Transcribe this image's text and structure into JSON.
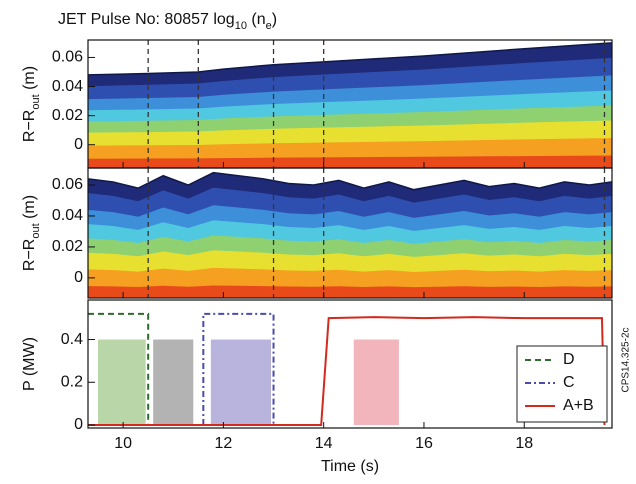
{
  "chart_data": [
    {
      "type": "contour",
      "title": [
        "JET Pulse No: 80857 log",
        "10",
        " (n",
        "e",
        ")"
      ],
      "ylabel": [
        "R−R",
        "out",
        " (m)"
      ],
      "xlim": [
        9.3,
        19.75
      ],
      "xticks": [
        10,
        12,
        14,
        16,
        18
      ],
      "ylim": [
        -0.016,
        0.072
      ],
      "yticks": [
        0,
        0.02,
        0.04,
        0.06
      ],
      "x": [
        9.3,
        10.5,
        11.5,
        12.0,
        13.0,
        14.0,
        16.0,
        18.0,
        19.75
      ],
      "values": [
        0.048,
        0.049,
        0.05,
        0.052,
        0.055,
        0.057,
        0.061,
        0.066,
        0.07
      ],
      "markers": [
        10.5,
        11.5,
        13,
        14,
        19.6
      ]
    },
    {
      "type": "contour",
      "ylabel": [
        "R−R",
        "out",
        " (m)"
      ],
      "xlim": [
        9.3,
        19.75
      ],
      "xticks": [
        10,
        12,
        14,
        16,
        18
      ],
      "ylim": [
        -0.013,
        0.071
      ],
      "yticks": [
        0,
        0.02,
        0.04,
        0.06
      ],
      "x": [
        9.3,
        9.8,
        10.3,
        10.8,
        11.3,
        11.8,
        12.3,
        12.8,
        13.3,
        13.8,
        14.3,
        14.8,
        15.3,
        15.8,
        16.3,
        16.8,
        17.3,
        17.8,
        18.3,
        18.8,
        19.3,
        19.75
      ],
      "values": [
        0.064,
        0.062,
        0.058,
        0.066,
        0.06,
        0.068,
        0.066,
        0.064,
        0.061,
        0.06,
        0.063,
        0.058,
        0.062,
        0.057,
        0.06,
        0.063,
        0.059,
        0.061,
        0.058,
        0.062,
        0.06,
        0.062
      ],
      "markers": [
        10.5,
        13,
        14,
        19.6
      ]
    },
    {
      "type": "line",
      "ylabel": [
        "P (MW)"
      ],
      "xlabel": "Time (s)",
      "xlim": [
        9.3,
        19.75
      ],
      "xticks": [
        10,
        12,
        14,
        16,
        18
      ],
      "ylim": [
        -0.014,
        0.585
      ],
      "yticks": [
        0,
        0.2,
        0.4
      ],
      "boxes": [
        {
          "x0": 9.5,
          "x1": 10.45,
          "value": 0.4,
          "color": "#b9d6a8"
        },
        {
          "x0": 10.6,
          "x1": 11.4,
          "value": 0.4,
          "color": "#b3b3b3"
        },
        {
          "x0": 11.75,
          "x1": 12.95,
          "value": 0.4,
          "color": "#b9b4dd"
        },
        {
          "x0": 14.6,
          "x1": 15.5,
          "value": 0.4,
          "color": "#f2b5bc"
        }
      ],
      "series": [
        {
          "name": "D",
          "color": "#2e6b2e",
          "dash": "6,4",
          "x": [
            9.3,
            10.5,
            10.5
          ],
          "values": [
            0.52,
            0.52,
            0
          ]
        },
        {
          "name": "C",
          "color": "#4b4bb0",
          "dash": "6,3,2,3",
          "x": [
            11.6,
            11.6,
            13.0,
            13.0
          ],
          "values": [
            0,
            0.52,
            0.52,
            0
          ]
        },
        {
          "name": "A+B",
          "color": "#d42a1e",
          "dash": "",
          "x": [
            9.3,
            13.95,
            14.1,
            15,
            16,
            17,
            18,
            19.55,
            19.6
          ],
          "values": [
            0,
            0,
            0.5,
            0.505,
            0.5,
            0.505,
            0.5,
            0.5,
            0
          ]
        }
      ],
      "legend": "lower right"
    }
  ],
  "side_note": "CPS14.325-2c"
}
